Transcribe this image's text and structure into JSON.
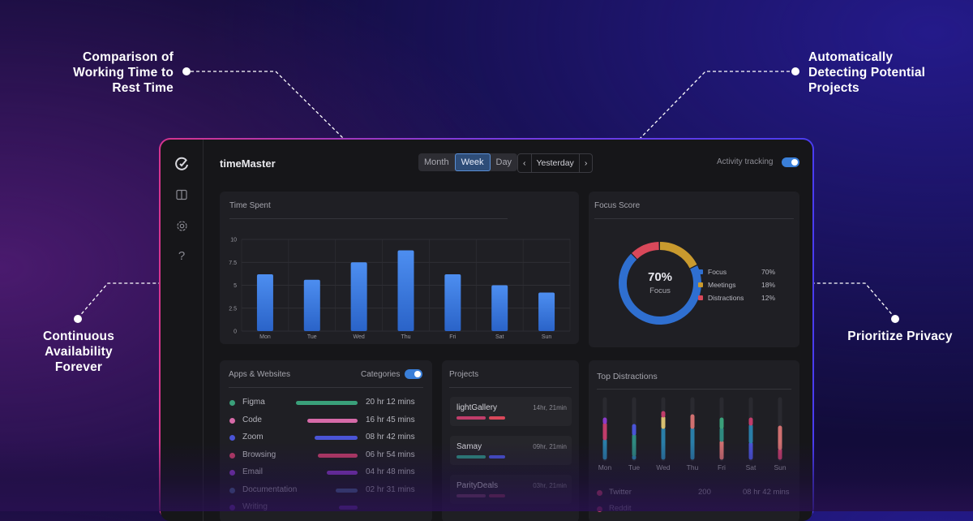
{
  "callouts": {
    "top_left": [
      "Comparison of",
      "Working Time to",
      "Rest Time"
    ],
    "top_right": [
      "Automatically",
      "Detecting Potential",
      "Projects"
    ],
    "left": [
      "Continuous",
      "Availability",
      "Forever"
    ],
    "right": "Prioritize Privacy"
  },
  "header": {
    "app_name": "timeMaster",
    "range_tabs": [
      "Month",
      "Week",
      "Day"
    ],
    "selected_tab": "Week",
    "prev_icon": "‹",
    "date_label": "Yesterday",
    "next_icon": "›",
    "activity_label": "Activity tracking",
    "activity_on": true
  },
  "sidebar": {
    "icons": [
      "logo-icon",
      "book-icon",
      "gear-icon",
      "help-icon"
    ]
  },
  "time_spent": {
    "title": "Time Spent",
    "chart_data": {
      "type": "bar",
      "categories": [
        "Mon",
        "Tue",
        "Wed",
        "Thu",
        "Fri",
        "Sat",
        "Sun"
      ],
      "values": [
        6.2,
        5.6,
        7.5,
        8.8,
        6.2,
        5.0,
        4.2
      ],
      "ylim": [
        0,
        10
      ],
      "yticks": [
        "10",
        "7.5",
        "5",
        "2.5",
        "0"
      ],
      "grid": true,
      "color": "#3d7ee0"
    }
  },
  "focus_score": {
    "title": "Focus Score",
    "center_value": "70%",
    "center_label": "Focus",
    "chart_data": {
      "type": "pie",
      "labels": [
        "Focus",
        "Meetings",
        "Distractions"
      ],
      "values": [
        70,
        18,
        12
      ],
      "display": [
        "70%",
        "18%",
        "12%"
      ],
      "colors": [
        "#2f6fd0",
        "#c99a2e",
        "#d9485a"
      ]
    }
  },
  "apps": {
    "title": "Apps & Websites",
    "categories_label": "Categories",
    "categories_on": true,
    "items": [
      {
        "name": "Figma",
        "time": "20 hr 12 mins",
        "color": "#3aa07a",
        "fill": 1.0
      },
      {
        "name": "Code",
        "time": "16 hr 45 mins",
        "color": "#d66aa8",
        "fill": 0.82
      },
      {
        "name": "Zoom",
        "time": "08 hr 42 mins",
        "color": "#4a54d6",
        "fill": 0.7
      },
      {
        "name": "Browsing",
        "time": "06 hr 54 mins",
        "color": "#c03d6a",
        "fill": 0.64
      },
      {
        "name": "Email",
        "time": "04 hr 48 mins",
        "color": "#8a3ac8",
        "fill": 0.5
      },
      {
        "name": "Documentation",
        "time": "02 hr 31 mins",
        "color": "#4a6a9a",
        "fill": 0.36
      },
      {
        "name": "Writing",
        "time": "",
        "color": "#7a3ac8",
        "fill": 0.3
      }
    ]
  },
  "projects": {
    "title": "Projects",
    "items": [
      {
        "name": "lightGallery",
        "time": "14hr, 21min",
        "c1": "#c03d6a",
        "c2": "#d9485a"
      },
      {
        "name": "Samay",
        "time": "09hr, 21min",
        "c1": "#2f8a80",
        "c2": "#4a54d6"
      },
      {
        "name": "ParityDeals",
        "time": "03hr, 21min",
        "c1": "#7a4a6a",
        "c2": "#8a3a5a"
      }
    ]
  },
  "distractions": {
    "title": "Top Distractions",
    "days": [
      "Mon",
      "Tue",
      "Wed",
      "Thu",
      "Fri",
      "Sat",
      "Sun"
    ],
    "rows": [
      {
        "name": "Twitter",
        "count": "200",
        "time": "08 hr 42 mins"
      },
      {
        "name": "Reddit",
        "count": "",
        "time": ""
      }
    ]
  }
}
